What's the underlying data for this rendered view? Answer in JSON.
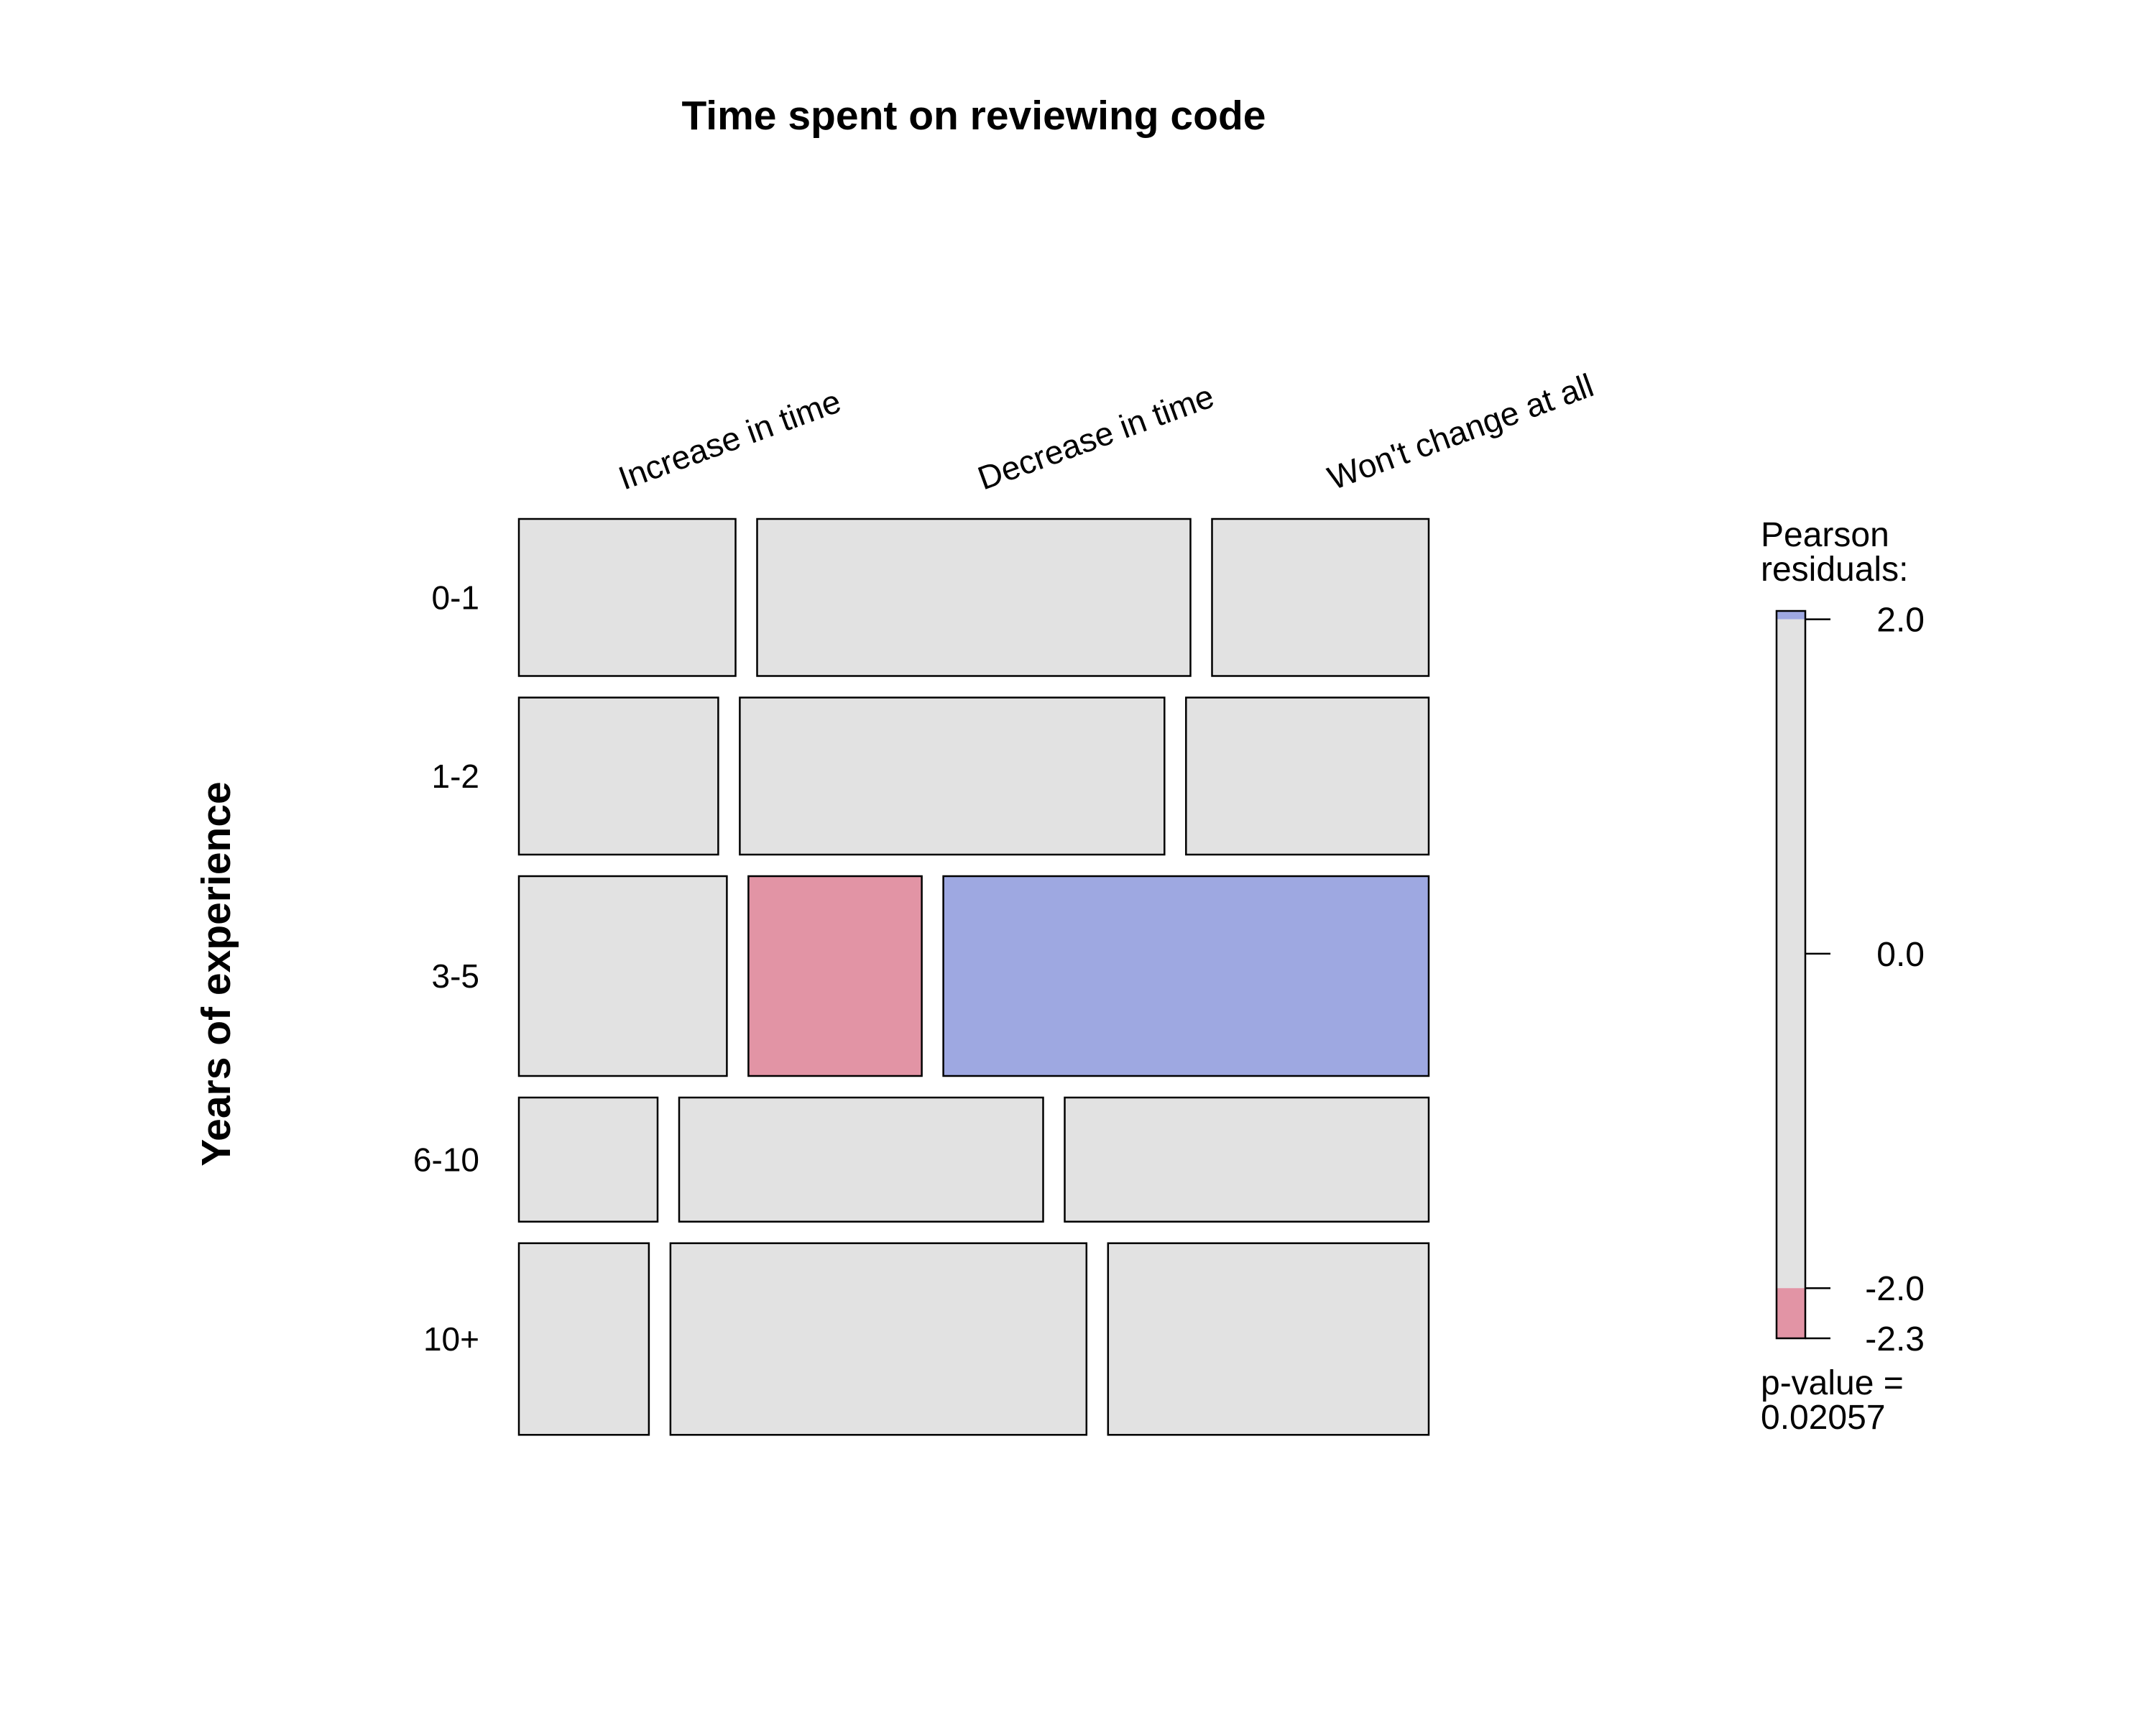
{
  "chart_data": {
    "type": "mosaic",
    "title": "Time spent on reviewing code",
    "ylabel": "Years of experience",
    "columns": [
      "Increase in time",
      "Decrease in time",
      "Won't change at all"
    ],
    "rows": [
      "0-1",
      "1-2",
      "3-5",
      "6-10",
      "10+"
    ],
    "row_proportions": [
      0.191,
      0.191,
      0.243,
      0.151,
      0.233
    ],
    "cell_proportions": [
      [
        0.25,
        0.5,
        0.25
      ],
      [
        0.23,
        0.49,
        0.28
      ],
      [
        0.24,
        0.2,
        0.56
      ],
      [
        0.16,
        0.42,
        0.42
      ],
      [
        0.15,
        0.48,
        0.37
      ]
    ],
    "residual_class": [
      [
        "neutral",
        "neutral",
        "neutral"
      ],
      [
        "neutral",
        "neutral",
        "neutral"
      ],
      [
        "neutral",
        "negative",
        "positive"
      ],
      [
        "neutral",
        "neutral",
        "neutral"
      ],
      [
        "neutral",
        "neutral",
        "neutral"
      ]
    ],
    "colors": {
      "neutral": "#e2e2e2",
      "positive": "#9ea8e1",
      "negative": "#e294a5"
    },
    "legend": {
      "title_line1": "Pearson",
      "title_line2": "residuals:",
      "range": [
        -2.3,
        2.05
      ],
      "ticks": [
        {
          "value": 2.0,
          "label": "2.0"
        },
        {
          "value": 0.0,
          "label": "0.0"
        },
        {
          "value": -2.0,
          "label": "-2.0"
        },
        {
          "value": -2.3,
          "label": "-2.3"
        }
      ],
      "pvalue_line1": "p-value =",
      "pvalue_line2": "0.02057"
    }
  }
}
